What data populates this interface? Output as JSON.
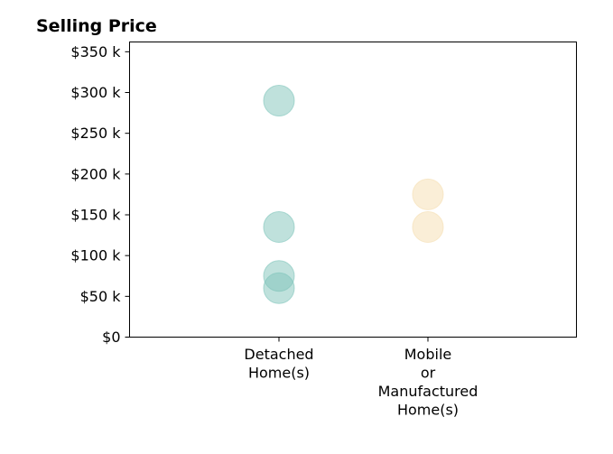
{
  "chart_data": {
    "type": "scatter",
    "title": "Selling Price",
    "xlabel": "",
    "ylabel": "",
    "categories": [
      [
        "Detached",
        "Home(s)"
      ],
      [
        "Mobile",
        "or",
        "Manufactured",
        "Home(s)"
      ]
    ],
    "ylim": [
      0,
      362000
    ],
    "y_ticks": [
      0,
      50000,
      100000,
      150000,
      200000,
      250000,
      300000,
      350000
    ],
    "y_tick_labels": [
      "$0",
      "$50 k",
      "$100 k",
      "$150 k",
      "$200 k",
      "$250 k",
      "$300 k",
      "$350 k"
    ],
    "grid": false,
    "legend": "none",
    "series": [
      {
        "category_index": 0,
        "color": "#7fc4ba",
        "values": [
          290000,
          135000,
          75000,
          60000
        ]
      },
      {
        "category_index": 1,
        "color": "#f5deb0",
        "values": [
          175000,
          135000
        ]
      }
    ]
  }
}
